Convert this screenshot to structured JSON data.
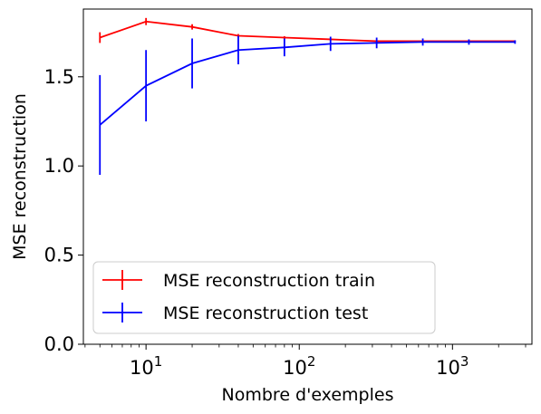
{
  "chart_data": {
    "type": "line",
    "xlabel": "Nombre d'exemples",
    "ylabel": "MSE reconstruction",
    "x_scale": "log",
    "xlim": [
      3.9,
      3300
    ],
    "ylim": [
      0.0,
      1.88
    ],
    "y_ticks": [
      0.0,
      0.5,
      1.0,
      1.5
    ],
    "y_tick_labels": [
      "0.0",
      "0.5",
      "1.0",
      "1.5"
    ],
    "x_ticks": [
      {
        "value": 10,
        "base": "10",
        "exp": "1"
      },
      {
        "value": 100,
        "base": "10",
        "exp": "2"
      },
      {
        "value": 1000,
        "base": "10",
        "exp": "3"
      }
    ],
    "grid": false,
    "legend_position": "lower-left",
    "x": [
      5,
      10,
      20,
      40,
      80,
      160,
      320,
      640,
      1280,
      2560
    ],
    "series": [
      {
        "name": "MSE reconstruction train",
        "color": "#ff0000",
        "values": [
          1.72,
          1.81,
          1.78,
          1.73,
          1.72,
          1.71,
          1.7,
          1.7,
          1.7,
          1.7
        ],
        "errors": [
          0.03,
          0.02,
          0.015,
          0.01,
          0.008,
          0.006,
          0.004,
          0.003,
          0.002,
          0.002
        ]
      },
      {
        "name": "MSE reconstruction test",
        "color": "#0000ff",
        "values": [
          1.23,
          1.45,
          1.575,
          1.65,
          1.665,
          1.685,
          1.69,
          1.695,
          1.695,
          1.695
        ],
        "errors": [
          0.28,
          0.2,
          0.14,
          0.08,
          0.05,
          0.04,
          0.03,
          0.02,
          0.015,
          0.01
        ]
      }
    ]
  }
}
